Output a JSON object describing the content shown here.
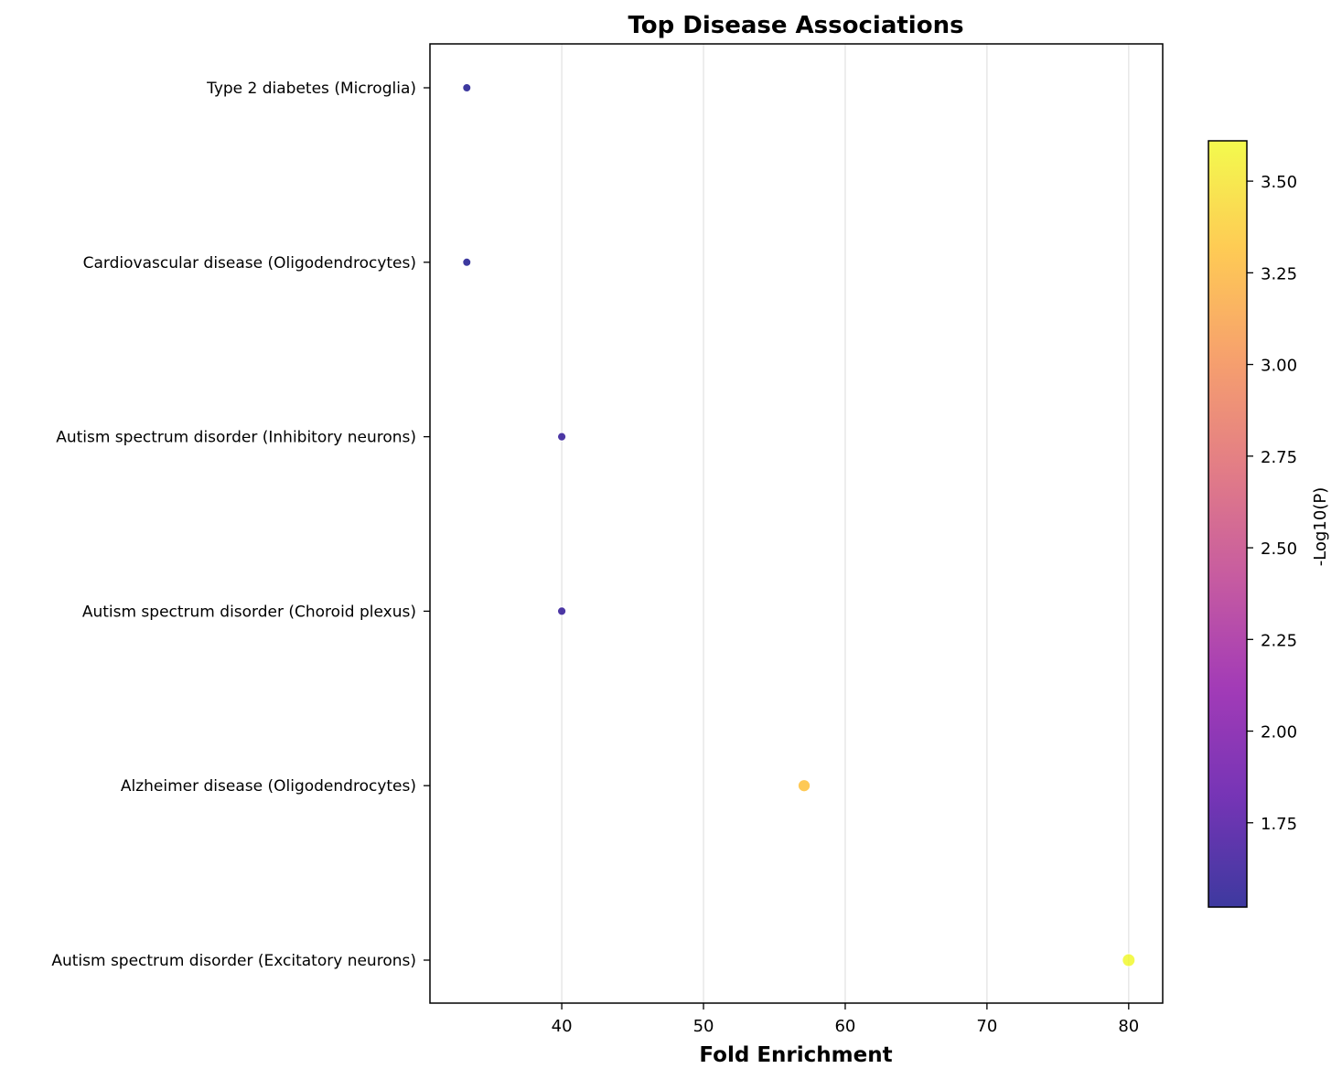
{
  "chart_data": {
    "type": "scatter",
    "title": "Top Disease Associations",
    "xlabel": "Fold Enrichment",
    "ylabel": "",
    "xlim": [
      30.7,
      82.4
    ],
    "xticks": [
      40,
      50,
      60,
      70,
      80
    ],
    "grid": "vertical",
    "categories": [
      "Type 2 diabetes (Microglia)",
      "Cardiovascular disease (Oligodendrocytes)",
      "Autism spectrum disorder (Inhibitory neurons)",
      "Autism spectrum disorder (Choroid plexus)",
      "Alzheimer disease (Oligodendrocytes)",
      "Autism spectrum disorder (Excitatory neurons)"
    ],
    "points": [
      {
        "category": "Type 2 diabetes (Microglia)",
        "fold_enrichment": 33.3,
        "neg_log10_p": 1.52
      },
      {
        "category": "Cardiovascular disease (Oligodendrocytes)",
        "fold_enrichment": 33.3,
        "neg_log10_p": 1.52
      },
      {
        "category": "Autism spectrum disorder (Inhibitory neurons)",
        "fold_enrichment": 40.0,
        "neg_log10_p": 1.6
      },
      {
        "category": "Autism spectrum disorder (Choroid plexus)",
        "fold_enrichment": 40.0,
        "neg_log10_p": 1.6
      },
      {
        "category": "Alzheimer disease (Oligodendrocytes)",
        "fold_enrichment": 57.1,
        "neg_log10_p": 3.3
      },
      {
        "category": "Autism spectrum disorder (Excitatory neurons)",
        "fold_enrichment": 80.0,
        "neg_log10_p": 3.6
      }
    ],
    "colorbar": {
      "label": "-Log10(P)",
      "colormap": "plasma",
      "range": [
        1.52,
        3.61
      ],
      "ticks": [
        "1.75",
        "2.00",
        "2.25",
        "2.50",
        "2.75",
        "3.00",
        "3.25",
        "3.50"
      ],
      "colors": [
        "#0d0887",
        "#5302a3",
        "#8b0aa5",
        "#b83289",
        "#db5c68",
        "#f48849",
        "#febd2a",
        "#f0f921"
      ]
    }
  }
}
